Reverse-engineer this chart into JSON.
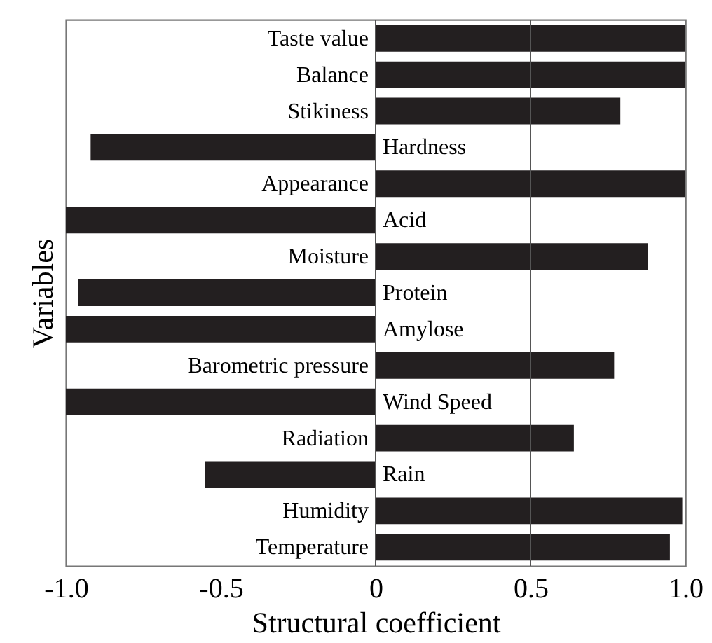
{
  "chart_data": {
    "type": "bar",
    "orientation": "horizontal",
    "xlabel": "Structural coefficient",
    "ylabel": "Variables",
    "categories": [
      "Taste value",
      "Balance",
      "Stikiness",
      "Hardness",
      "Appearance",
      "Acid",
      "Moisture",
      "Protein",
      "Amylose",
      "Barometric pressure",
      "Wind Speed",
      "Radiation",
      "Rain",
      "Humidity",
      "Temperature"
    ],
    "values": [
      1.0,
      1.0,
      0.79,
      -0.92,
      1.0,
      -1.0,
      0.88,
      -0.96,
      -1.0,
      0.77,
      -1.0,
      0.64,
      -0.55,
      0.99,
      0.95
    ],
    "color": "#231f20",
    "xlim": [
      -1.0,
      1.0
    ],
    "xticks": [
      {
        "value": -1.0,
        "label": "-1.0"
      },
      -0.5,
      0,
      0.5,
      {
        "value": 1.0,
        "label": "1.0"
      }
    ],
    "grid": false,
    "ref_lines": [
      {
        "axis": "x",
        "value": 0,
        "color": "#555555"
      },
      {
        "axis": "x",
        "value": 0.5,
        "color": "#555555"
      }
    ]
  }
}
